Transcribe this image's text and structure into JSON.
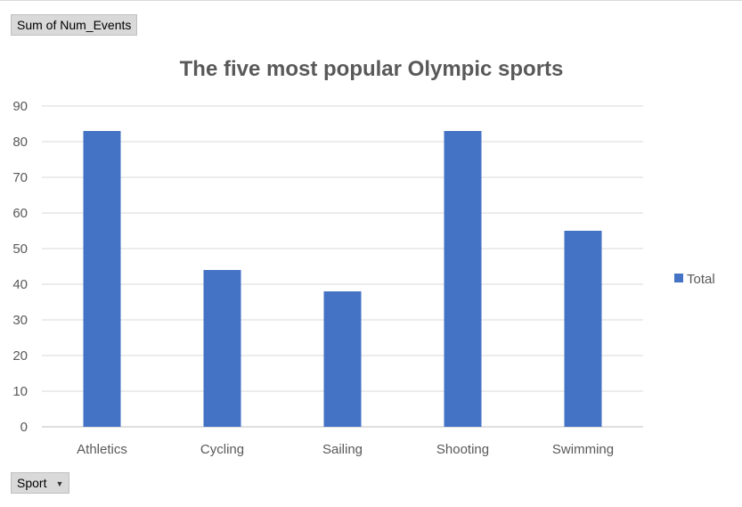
{
  "field_buttons": {
    "value_field": "Sum of Num_Events",
    "axis_field": "Sport"
  },
  "colors": {
    "bar": "#4472c4",
    "gridline": "#d9d9d9",
    "text": "#595959"
  },
  "chart_data": {
    "type": "bar",
    "title": "The five most popular Olympic sports",
    "xlabel": "",
    "ylabel": "",
    "categories": [
      "Athletics",
      "Cycling",
      "Sailing",
      "Shooting",
      "Swimming"
    ],
    "series": [
      {
        "name": "Total",
        "values": [
          83,
          44,
          38,
          83,
          55
        ]
      }
    ],
    "ylim": [
      0,
      90
    ],
    "yticks": [
      0,
      10,
      20,
      30,
      40,
      50,
      60,
      70,
      80,
      90
    ],
    "grid": true,
    "legend": "right"
  }
}
